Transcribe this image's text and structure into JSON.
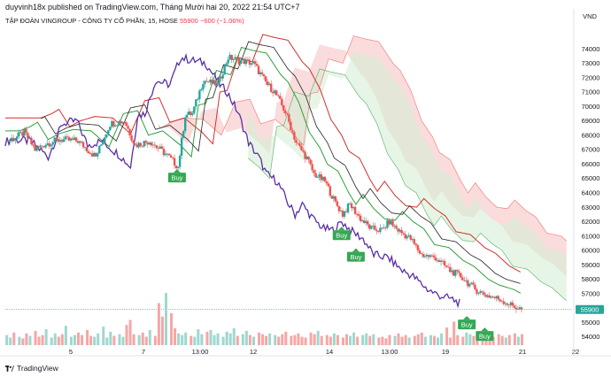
{
  "header": {
    "published_by": "duyvinh18x published on TradingView.com, Tháng Mười hai 20, 2022 21:54 UTC+7"
  },
  "symbol": {
    "name": "TẬP ĐOÀN VINGROUP - CÔNG TY CỔ PHẦN, 15, HOSE",
    "price": "55900",
    "change": "−600 (−1.06%)"
  },
  "footer": {
    "brand": "TradingView"
  },
  "colors": {
    "up": "#26a69a",
    "down": "#ef5350",
    "lagging": "#5b2ea6",
    "base": "#d32f2f",
    "conv": "#2e9e3e",
    "ma": "#222222",
    "buy": "#34a853",
    "cloud_bear": "#f8d0d0",
    "cloud_bull": "#d6efd6"
  },
  "chart_data": {
    "type": "candlestick",
    "ylabel": "VND",
    "y_ticks": [
      74000,
      73000,
      72000,
      71000,
      70000,
      69000,
      68000,
      67000,
      66000,
      65000,
      64000,
      63000,
      62000,
      61000,
      60000,
      59000,
      58000,
      57000,
      56000,
      55000,
      54000
    ],
    "ylim": [
      53300,
      75300
    ],
    "x_ticks": [
      "5",
      "7",
      "13:00",
      "12",
      "14",
      "13:00",
      "19",
      "21",
      "22"
    ],
    "last_price": 55900,
    "price_path": [
      [
        0,
        67600
      ],
      [
        6,
        67900
      ],
      [
        10,
        68200
      ],
      [
        16,
        67000
      ],
      [
        22,
        67400
      ],
      [
        30,
        67700
      ],
      [
        40,
        67600
      ],
      [
        50,
        66500
      ],
      [
        58,
        68800
      ],
      [
        66,
        69000
      ],
      [
        72,
        67300
      ],
      [
        80,
        67600
      ],
      [
        90,
        66600
      ],
      [
        96,
        65800
      ],
      [
        100,
        69400
      ],
      [
        104,
        69500
      ],
      [
        110,
        71800
      ],
      [
        118,
        71500
      ],
      [
        124,
        73400
      ],
      [
        130,
        73200
      ],
      [
        138,
        73000
      ],
      [
        146,
        71500
      ],
      [
        150,
        71000
      ],
      [
        156,
        69600
      ],
      [
        162,
        67500
      ],
      [
        168,
        66400
      ],
      [
        172,
        65300
      ],
      [
        178,
        64800
      ],
      [
        184,
        63300
      ],
      [
        188,
        62500
      ],
      [
        192,
        63200
      ],
      [
        198,
        62200
      ],
      [
        204,
        61500
      ],
      [
        210,
        61400
      ],
      [
        214,
        62000
      ],
      [
        220,
        61300
      ],
      [
        226,
        60800
      ],
      [
        232,
        59700
      ],
      [
        240,
        59500
      ],
      [
        248,
        58600
      ],
      [
        254,
        58200
      ],
      [
        262,
        57300
      ],
      [
        268,
        56900
      ],
      [
        276,
        56600
      ],
      [
        282,
        56200
      ],
      [
        288,
        55900
      ]
    ],
    "volume_ylim": [
      0,
      100
    ],
    "volume": [
      12,
      9,
      15,
      10,
      8,
      14,
      11,
      17,
      10,
      12,
      19,
      9,
      14,
      10,
      13,
      23,
      10,
      12,
      15,
      12,
      18,
      11,
      10,
      14,
      22,
      9,
      16,
      11,
      13,
      10,
      24,
      30,
      13,
      12,
      15,
      10,
      18,
      11,
      50,
      34,
      62,
      38,
      20,
      14,
      12,
      15,
      11,
      10,
      19,
      13,
      16,
      18,
      12,
      14,
      10,
      16,
      14,
      20,
      11,
      13,
      17,
      12,
      10,
      15,
      13,
      11,
      14,
      12,
      10,
      13,
      16,
      11,
      12,
      14,
      10,
      9,
      15,
      13,
      17,
      11,
      12,
      10,
      14,
      12,
      9,
      13,
      11,
      15,
      10,
      12,
      14,
      11,
      13,
      9,
      10,
      8,
      12,
      11,
      14,
      10,
      12,
      9,
      11,
      13,
      15,
      10,
      12,
      11,
      9,
      14,
      21,
      9,
      28,
      12,
      10,
      15,
      13,
      11,
      9,
      14,
      12,
      8,
      10,
      13,
      11,
      9,
      12,
      14,
      10,
      13
    ],
    "signals": [
      {
        "label": "Buy",
        "x": 96,
        "price": 65400
      },
      {
        "label": "Buy",
        "x": 188,
        "price": 61400
      },
      {
        "label": "Buy",
        "x": 196,
        "price": 59900
      },
      {
        "label": "Buy",
        "x": 258,
        "price": 55200
      },
      {
        "label": "Buy",
        "x": 268,
        "price": 54400
      }
    ]
  }
}
